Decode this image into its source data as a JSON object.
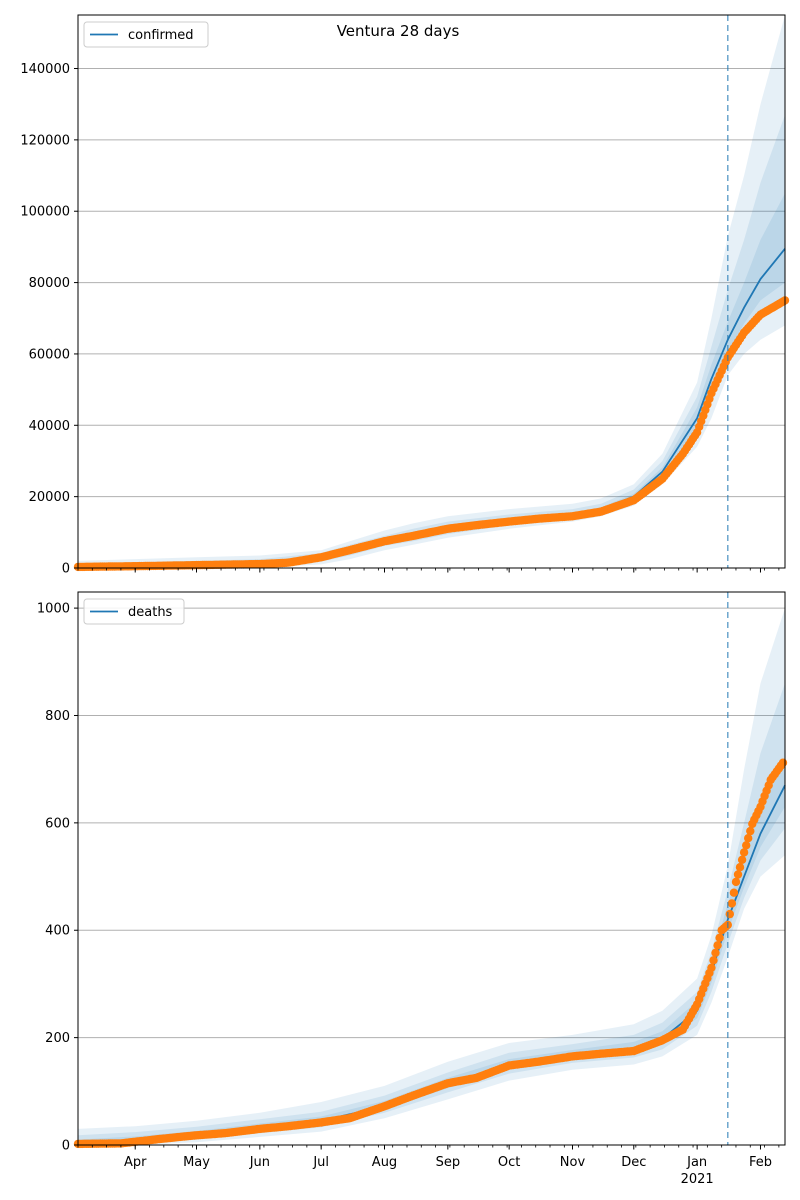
{
  "figure_title": "Ventura 28 days",
  "colors": {
    "model_line": "#1f77b4",
    "observed": "#ff7f0e",
    "band": "#1f77b4",
    "grid": "#b0b0b0",
    "vline": "#1f77b4"
  },
  "x_axis": {
    "months": [
      {
        "label": "Apr",
        "date": "2020-04-01"
      },
      {
        "label": "May",
        "date": "2020-05-01"
      },
      {
        "label": "Jun",
        "date": "2020-06-01"
      },
      {
        "label": "Jul",
        "date": "2020-07-01"
      },
      {
        "label": "Aug",
        "date": "2020-08-01"
      },
      {
        "label": "Sep",
        "date": "2020-09-01"
      },
      {
        "label": "Oct",
        "date": "2020-10-01"
      },
      {
        "label": "Nov",
        "date": "2020-11-01"
      },
      {
        "label": "Dec",
        "date": "2020-12-01"
      },
      {
        "label": "Jan",
        "date": "2021-01-01"
      },
      {
        "label": "Feb",
        "date": "2021-02-01"
      }
    ],
    "year_label": "2021",
    "start": "2020-03-04",
    "end": "2021-02-13",
    "forecast_start": "2021-01-16"
  },
  "chart_data": [
    {
      "type": "line",
      "legend": "confirmed",
      "legend_position": "top-left",
      "grid": "y",
      "ylim": [
        0,
        155000
      ],
      "yticks": [
        0,
        20000,
        40000,
        60000,
        80000,
        100000,
        120000,
        140000
      ],
      "model": {
        "x": [
          "2020-03-04",
          "2020-04-01",
          "2020-05-01",
          "2020-06-01",
          "2020-07-01",
          "2020-07-15",
          "2020-08-01",
          "2020-08-15",
          "2020-09-01",
          "2020-10-01",
          "2020-11-01",
          "2020-11-15",
          "2020-12-01",
          "2020-12-15",
          "2021-01-01",
          "2021-01-08",
          "2021-01-16",
          "2021-01-24",
          "2021-02-01",
          "2021-02-13"
        ],
        "y": [
          300,
          600,
          900,
          1300,
          3000,
          5000,
          7500,
          9000,
          11000,
          13000,
          15000,
          16500,
          20000,
          27000,
          42000,
          53000,
          64000,
          73000,
          81000,
          89500
        ]
      },
      "bands": [
        {
          "level": "outer",
          "lower": [
            0,
            0,
            0,
            0,
            1000,
            2500,
            5000,
            6500,
            8500,
            11000,
            13000,
            14500,
            17500,
            23500,
            34000,
            42000,
            54000,
            60000,
            64000,
            68000
          ],
          "upper": [
            2000,
            2500,
            3000,
            3500,
            5000,
            7500,
            10500,
            12500,
            14500,
            16500,
            18000,
            19500,
            23500,
            32000,
            52000,
            70000,
            93000,
            110000,
            130000,
            155000
          ]
        },
        {
          "level": "middle",
          "lower": [
            0,
            0,
            200,
            500,
            1800,
            3500,
            6200,
            7500,
            9500,
            12000,
            14000,
            15500,
            18500,
            25000,
            37000,
            46000,
            58000,
            65000,
            70000,
            74000
          ],
          "upper": [
            1200,
            1600,
            2000,
            2500,
            4200,
            6500,
            9000,
            11000,
            13000,
            15000,
            16500,
            18000,
            22000,
            30000,
            48000,
            62000,
            78000,
            92000,
            108000,
            127000
          ]
        },
        {
          "level": "inner",
          "lower": [
            100,
            300,
            500,
            900,
            2400,
            4200,
            6800,
            8200,
            10200,
            12500,
            14500,
            16000,
            19200,
            26000,
            39500,
            49500,
            60500,
            68500,
            75000,
            80000
          ],
          "upper": [
            600,
            900,
            1300,
            1800,
            3600,
            5800,
            8300,
            9900,
            11900,
            13600,
            15500,
            17000,
            20800,
            28200,
            45000,
            57000,
            69000,
            80000,
            92000,
            105000
          ]
        }
      ],
      "observed": {
        "x": [
          "2020-03-04",
          "2020-04-01",
          "2020-05-01",
          "2020-06-01",
          "2020-06-15",
          "2020-07-01",
          "2020-07-15",
          "2020-08-01",
          "2020-08-15",
          "2020-09-01",
          "2020-09-15",
          "2020-10-01",
          "2020-10-15",
          "2020-11-01",
          "2020-11-15",
          "2020-12-01",
          "2020-12-15",
          "2020-12-25",
          "2021-01-01",
          "2021-01-08",
          "2021-01-16",
          "2021-01-24",
          "2021-02-01",
          "2021-02-13"
        ],
        "y": [
          300,
          500,
          800,
          1100,
          1500,
          3000,
          5000,
          7500,
          9000,
          11000,
          12000,
          13000,
          13800,
          14500,
          15800,
          19000,
          25000,
          32000,
          38000,
          49000,
          59000,
          66000,
          71000,
          75000
        ]
      }
    },
    {
      "type": "line",
      "legend": "deaths",
      "legend_position": "top-left",
      "grid": "y",
      "ylim": [
        0,
        1030
      ],
      "yticks": [
        0,
        200,
        400,
        600,
        800,
        1000
      ],
      "model": {
        "x": [
          "2020-03-04",
          "2020-04-01",
          "2020-05-01",
          "2020-06-01",
          "2020-07-01",
          "2020-08-01",
          "2020-09-01",
          "2020-10-01",
          "2020-11-01",
          "2020-12-01",
          "2020-12-15",
          "2021-01-01",
          "2021-01-08",
          "2021-01-16",
          "2021-01-24",
          "2021-02-01",
          "2021-02-13"
        ],
        "y": [
          2,
          8,
          20,
          33,
          45,
          72,
          115,
          150,
          168,
          180,
          198,
          250,
          320,
          420,
          500,
          580,
          670
        ]
      },
      "bands": [
        {
          "level": "outer",
          "lower": [
            0,
            0,
            5,
            15,
            25,
            50,
            85,
            120,
            140,
            150,
            165,
            205,
            265,
            350,
            440,
            500,
            540
          ],
          "upper": [
            30,
            35,
            45,
            60,
            80,
            110,
            155,
            190,
            205,
            225,
            250,
            310,
            390,
            520,
            700,
            860,
            1000
          ]
        },
        {
          "level": "middle",
          "lower": [
            0,
            2,
            10,
            22,
            33,
            60,
            98,
            133,
            153,
            163,
            178,
            222,
            285,
            375,
            460,
            530,
            590
          ],
          "upper": [
            18,
            24,
            34,
            48,
            62,
            92,
            135,
            172,
            188,
            205,
            228,
            285,
            360,
            475,
            600,
            730,
            860
          ]
        },
        {
          "level": "inner",
          "lower": [
            0,
            4,
            15,
            28,
            39,
            66,
            106,
            141,
            160,
            171,
            188,
            236,
            302,
            398,
            480,
            555,
            630
          ],
          "upper": [
            10,
            16,
            26,
            40,
            53,
            82,
            125,
            160,
            177,
            192,
            212,
            268,
            340,
            450,
            535,
            625,
            720
          ]
        }
      ],
      "observed": {
        "x": [
          "2020-03-04",
          "2020-03-25",
          "2020-04-15",
          "2020-05-01",
          "2020-05-15",
          "2020-06-01",
          "2020-06-15",
          "2020-07-01",
          "2020-07-15",
          "2020-08-01",
          "2020-08-15",
          "2020-09-01",
          "2020-09-15",
          "2020-10-01",
          "2020-10-15",
          "2020-11-01",
          "2020-11-15",
          "2020-12-01",
          "2020-12-15",
          "2020-12-25",
          "2021-01-01",
          "2021-01-08",
          "2021-01-13",
          "2021-01-16",
          "2021-01-20",
          "2021-01-24",
          "2021-01-28",
          "2021-02-01",
          "2021-02-06",
          "2021-02-12"
        ],
        "y": [
          2,
          3,
          12,
          18,
          22,
          30,
          35,
          42,
          50,
          72,
          92,
          115,
          125,
          148,
          155,
          165,
          170,
          175,
          195,
          215,
          262,
          330,
          400,
          410,
          490,
          545,
          598,
          630,
          680,
          712
        ]
      }
    }
  ]
}
